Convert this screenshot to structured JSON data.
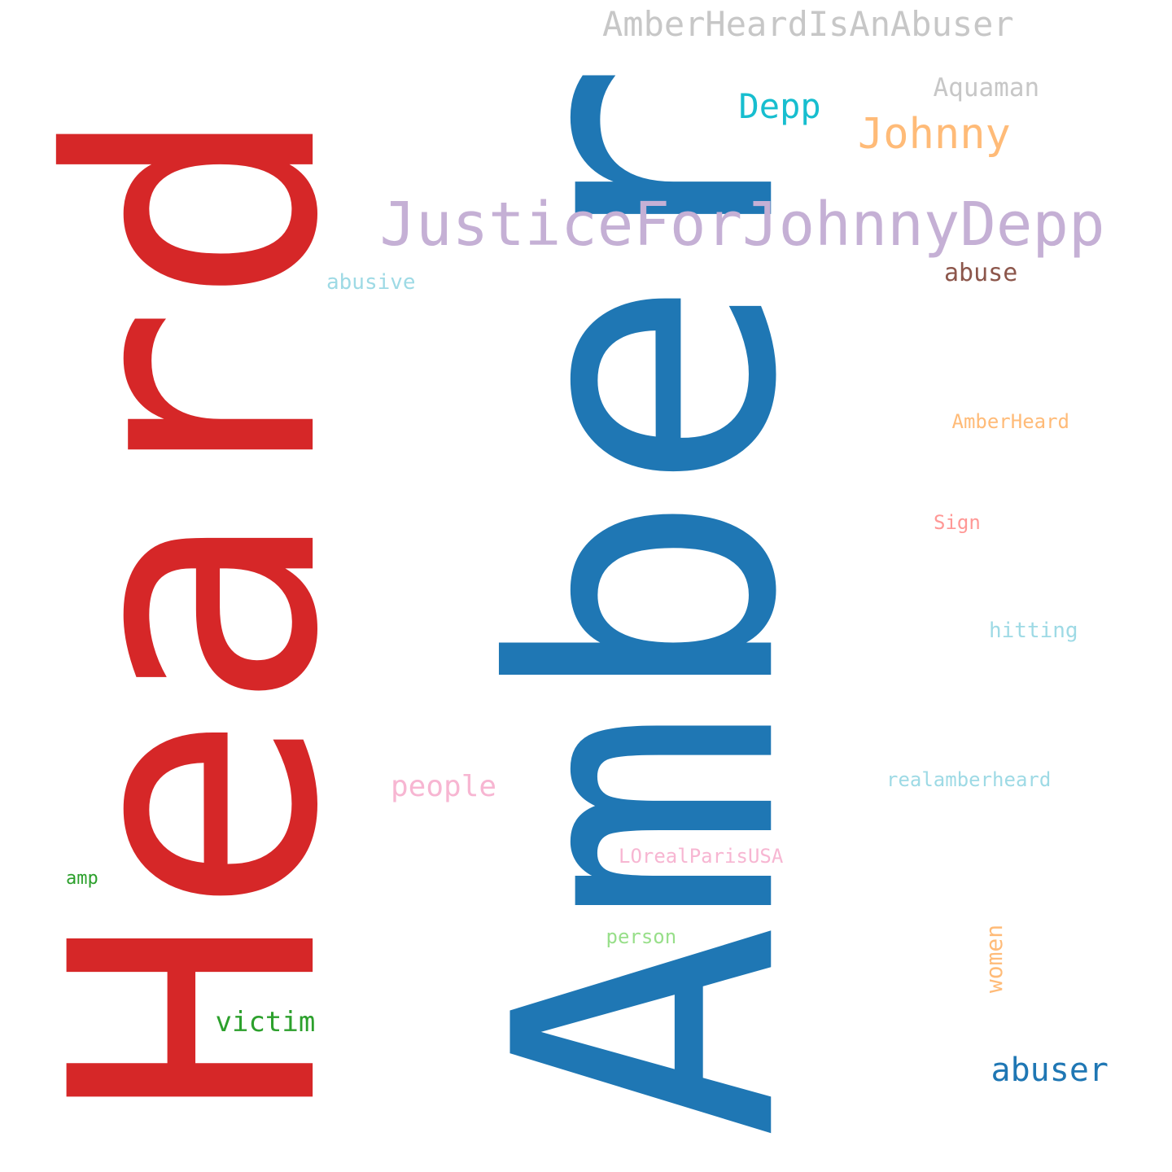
{
  "words": [
    {
      "text": "Amber",
      "color": "#1f77b4",
      "orientation": "vertical"
    },
    {
      "text": "Heard",
      "color": "#d62728",
      "orientation": "vertical"
    },
    {
      "text": "JusticeForJohnnyDepp",
      "color": "#c5b0d5",
      "orientation": "horizontal"
    },
    {
      "text": "AmberHeardIsAnAbuser",
      "color": "#c7c7c7",
      "orientation": "horizontal"
    },
    {
      "text": "Johnny",
      "color": "#ffbb78",
      "orientation": "horizontal"
    },
    {
      "text": "Depp",
      "color": "#17becf",
      "orientation": "horizontal"
    },
    {
      "text": "Aquaman",
      "color": "#c7c7c7",
      "orientation": "horizontal"
    },
    {
      "text": "abuse",
      "color": "#8c564b",
      "orientation": "horizontal"
    },
    {
      "text": "abusive",
      "color": "#9edae5",
      "orientation": "horizontal"
    },
    {
      "text": "AmberHeard",
      "color": "#ffbb78",
      "orientation": "horizontal"
    },
    {
      "text": "Sign",
      "color": "#ff9896",
      "orientation": "horizontal"
    },
    {
      "text": "hitting",
      "color": "#9edae5",
      "orientation": "horizontal"
    },
    {
      "text": "realamberheard",
      "color": "#9edae5",
      "orientation": "horizontal"
    },
    {
      "text": "people",
      "color": "#f7b6d2",
      "orientation": "horizontal"
    },
    {
      "text": "LOrealParisUSA",
      "color": "#f7b6d2",
      "orientation": "horizontal"
    },
    {
      "text": "amp",
      "color": "#2ca02c",
      "orientation": "horizontal"
    },
    {
      "text": "person",
      "color": "#98df8a",
      "orientation": "horizontal"
    },
    {
      "text": "women",
      "color": "#ffbb78",
      "orientation": "vertical"
    },
    {
      "text": "victim",
      "color": "#2ca02c",
      "orientation": "horizontal"
    },
    {
      "text": "abuser",
      "color": "#1f77b4",
      "orientation": "horizontal"
    }
  ]
}
